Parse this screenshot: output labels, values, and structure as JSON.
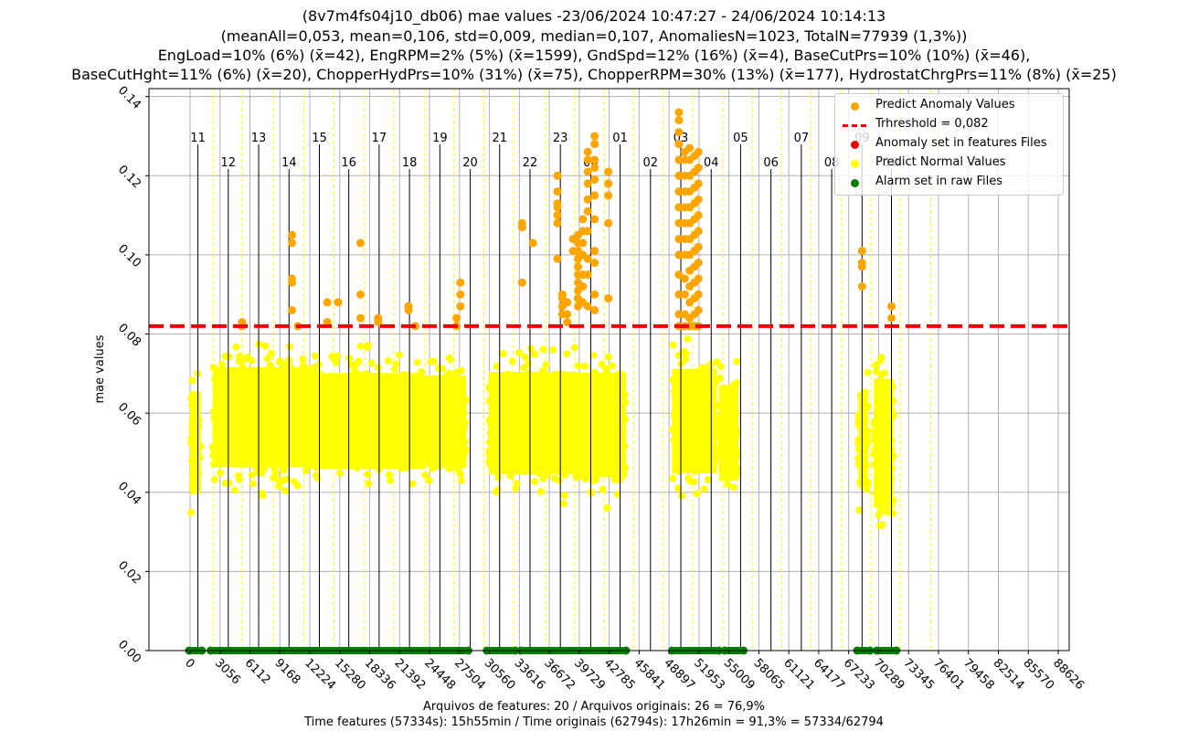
{
  "header": {
    "line1": "(8v7m4fs04j10_db06) mae values -23/06/2024 10:47:27 - 24/06/2024 10:14:13",
    "line2": "(meanAll=0,053, mean=0,106, std=0,009, median=0,107, AnomaliesN=1023, TotalN=77939 (1,3%))",
    "line3": "EngLoad=10% (6%) (x̄=42), EngRPM=2% (5%) (x̄=1599), GndSpd=12% (16%) (x̄=4), BaseCutPrs=10% (10%) (x̄=46),",
    "line4": "BaseCutHght=11% (6%) (x̄=20), ChopperHydPrs=10% (31%) (x̄=75), ChopperRPM=30% (13%) (x̄=177), HydrostatChrgPrs=11% (8%) (x̄=25)"
  },
  "footer": {
    "line1": "Arquivos de features: 20 / Arquivos originais: 26 = 76,9%",
    "line2": "Time features (57334s): 15h55min / Time originais (62794s): 17h26min = 91,3% = 57334/62794"
  },
  "legend": {
    "items": [
      {
        "label": "Predict Anomaly Values",
        "marker": "dot",
        "color": "#ffa500"
      },
      {
        "label": "Trhreshold = 0,082",
        "marker": "dash",
        "color": "#ee0000"
      },
      {
        "label": "Anomaly set in features Files",
        "marker": "dot",
        "color": "#ee0000"
      },
      {
        "label": "Predict Normal Values",
        "marker": "dot",
        "color": "#ffff00"
      },
      {
        "label": "Alarm set in raw Files",
        "marker": "dot",
        "color": "#007f00"
      }
    ]
  },
  "colors": {
    "anomaly": "#ffa500",
    "normal": "#ffff00",
    "threshold": "#ee0000",
    "alarm": "#007f00",
    "grid": "#b0b0b0",
    "hour_line": "#000000",
    "file_line": "#ffff00"
  },
  "chart_data": {
    "type": "scatter",
    "ylabel": "mae values",
    "xlabel": "",
    "xlim": [
      -3000,
      91500
    ],
    "ylim": [
      0,
      0.142
    ],
    "grid": true,
    "legend_position": "top-right",
    "y_ticks": [
      0.0,
      0.02,
      0.04,
      0.06,
      0.08,
      0.1,
      0.12,
      0.14
    ],
    "y_tick_labels": [
      "0.00",
      "0.02",
      "0.04",
      "0.06",
      "0.08",
      "0.10",
      "0.12",
      "0.14"
    ],
    "x_ticks": [
      0,
      3056,
      6112,
      9168,
      12224,
      15280,
      18336,
      21392,
      24448,
      27504,
      30560,
      33616,
      36672,
      39729,
      42785,
      45841,
      48897,
      51953,
      55009,
      58065,
      61121,
      64177,
      67233,
      70289,
      73345,
      76401,
      79458,
      82514,
      85570,
      88626
    ],
    "x_tick_labels": [
      "0",
      "3056",
      "6112",
      "9168",
      "12224",
      "15280",
      "18336",
      "21392",
      "24448",
      "27504",
      "30560",
      "33616",
      "36672",
      "39729",
      "42785",
      "45841",
      "48897",
      "51953",
      "55009",
      "58065",
      "61121",
      "64177",
      "67233",
      "70289",
      "73345",
      "76401",
      "79458",
      "82514",
      "85570",
      "88626"
    ],
    "threshold": 0.082,
    "hour_markers": [
      {
        "label": "11",
        "x": 800
      },
      {
        "label": "12",
        "x": 3900
      },
      {
        "label": "13",
        "x": 7000
      },
      {
        "label": "14",
        "x": 10100
      },
      {
        "label": "15",
        "x": 13200
      },
      {
        "label": "16",
        "x": 16200
      },
      {
        "label": "17",
        "x": 19300
      },
      {
        "label": "18",
        "x": 22400
      },
      {
        "label": "19",
        "x": 25500
      },
      {
        "label": "20",
        "x": 28600
      },
      {
        "label": "21",
        "x": 31600
      },
      {
        "label": "22",
        "x": 34700
      },
      {
        "label": "23",
        "x": 37800
      },
      {
        "label": "00",
        "x": 40900
      },
      {
        "label": "01",
        "x": 43900
      },
      {
        "label": "02",
        "x": 47000
      },
      {
        "label": "03",
        "x": 50100
      },
      {
        "label": "04",
        "x": 53200
      },
      {
        "label": "05",
        "x": 56200
      },
      {
        "label": "06",
        "x": 59300
      },
      {
        "label": "07",
        "x": 62400
      },
      {
        "label": "08",
        "x": 65500
      },
      {
        "label": "09",
        "x": 68600
      },
      {
        "label": "10",
        "x": 71600
      }
    ],
    "file_boundaries": [
      2400,
      5300,
      8500,
      11600,
      14700,
      17800,
      20800,
      24000,
      26900,
      30000,
      33000,
      36300,
      39300,
      42300,
      45300,
      48300,
      51300,
      54400,
      57400,
      60400,
      63400,
      66500,
      69500,
      72500,
      75600
    ],
    "series": [
      {
        "name": "Predict Normal Values",
        "kind": "normal_bands",
        "segments": [
          {
            "x": [
              0,
              1100
            ],
            "low": 0.029,
            "high": 0.076
          },
          {
            "x": [
              2300,
              11800
            ],
            "low": 0.036,
            "high": 0.082
          },
          {
            "x": [
              11800,
              23900
            ],
            "low": 0.036,
            "high": 0.08
          },
          {
            "x": [
              23900,
              28200
            ],
            "low": 0.037,
            "high": 0.079
          },
          {
            "x": [
              30500,
              39500
            ],
            "low": 0.034,
            "high": 0.081
          },
          {
            "x": [
              39500,
              44500
            ],
            "low": 0.033,
            "high": 0.081
          },
          {
            "x": [
              49200,
              53800
            ],
            "low": 0.034,
            "high": 0.082
          },
          {
            "x": [
              54000,
              56000
            ],
            "low": 0.033,
            "high": 0.077
          },
          {
            "x": [
              68200,
              69200
            ],
            "low": 0.031,
            "high": 0.075
          },
          {
            "x": [
              69800,
              71800
            ],
            "low": 0.023,
            "high": 0.082
          }
        ]
      },
      {
        "name": "Predict Anomaly Values",
        "kind": "anomaly_columns",
        "columns": [
          {
            "x": 5300,
            "values": [
              0.082,
              0.083
            ]
          },
          {
            "x": 10400,
            "values": [
              0.086,
              0.093,
              0.094,
              0.103,
              0.105
            ]
          },
          {
            "x": 11000,
            "values": [
              0.082
            ]
          },
          {
            "x": 14000,
            "values": [
              0.083,
              0.088
            ]
          },
          {
            "x": 15100,
            "values": [
              0.088
            ]
          },
          {
            "x": 17400,
            "values": [
              0.084,
              0.09,
              0.103
            ]
          },
          {
            "x": 19200,
            "values": [
              0.083,
              0.084
            ]
          },
          {
            "x": 22300,
            "values": [
              0.086,
              0.087
            ]
          },
          {
            "x": 23000,
            "values": [
              0.082
            ]
          },
          {
            "x": 27200,
            "values": [
              0.082,
              0.084
            ]
          },
          {
            "x": 27600,
            "values": [
              0.087,
              0.09,
              0.093
            ]
          },
          {
            "x": 33900,
            "values": [
              0.093,
              0.107,
              0.108
            ]
          },
          {
            "x": 35000,
            "values": [
              0.103
            ]
          },
          {
            "x": 37500,
            "values": [
              0.099,
              0.108,
              0.11,
              0.112,
              0.113,
              0.116,
              0.12
            ]
          },
          {
            "x": 38000,
            "values": [
              0.085,
              0.087,
              0.089,
              0.09
            ]
          },
          {
            "x": 38500,
            "values": [
              0.083,
              0.085,
              0.088
            ]
          },
          {
            "x": 39100,
            "values": [
              0.101,
              0.104
            ]
          },
          {
            "x": 39600,
            "values": [
              0.087,
              0.089,
              0.091,
              0.093,
              0.095,
              0.097,
              0.099,
              0.101,
              0.103,
              0.105
            ]
          },
          {
            "x": 40100,
            "values": [
              0.088,
              0.092,
              0.095,
              0.1,
              0.103,
              0.106,
              0.109
            ]
          },
          {
            "x": 40600,
            "values": [
              0.087,
              0.095,
              0.099,
              0.106,
              0.111,
              0.114,
              0.118,
              0.121,
              0.124,
              0.126
            ]
          },
          {
            "x": 41300,
            "values": [
              0.086,
              0.09,
              0.098,
              0.101,
              0.109,
              0.115,
              0.119,
              0.122,
              0.124,
              0.128,
              0.13
            ]
          },
          {
            "x": 42700,
            "values": [
              0.089,
              0.108,
              0.115,
              0.118,
              0.121
            ]
          },
          {
            "x": 49900,
            "values": [
              0.082,
              0.085,
              0.09,
              0.095,
              0.1,
              0.104,
              0.108,
              0.112,
              0.116,
              0.12,
              0.124,
              0.128,
              0.131,
              0.134,
              0.136
            ]
          },
          {
            "x": 50500,
            "values": [
              0.082,
              0.085,
              0.09,
              0.094,
              0.1,
              0.104,
              0.108,
              0.112,
              0.116,
              0.12,
              0.124,
              0.126
            ]
          },
          {
            "x": 51000,
            "values": [
              0.082,
              0.084,
              0.088,
              0.092,
              0.096,
              0.1,
              0.104,
              0.108,
              0.112,
              0.116,
              0.12,
              0.124,
              0.127
            ]
          },
          {
            "x": 51500,
            "values": [
              0.082,
              0.085,
              0.089,
              0.093,
              0.097,
              0.101,
              0.105,
              0.109,
              0.113,
              0.117,
              0.121,
              0.125
            ]
          },
          {
            "x": 51900,
            "values": [
              0.082,
              0.086,
              0.09,
              0.094,
              0.098,
              0.102,
              0.106,
              0.11,
              0.114,
              0.118,
              0.122,
              0.126
            ]
          },
          {
            "x": 68600,
            "values": [
              0.092,
              0.097,
              0.098,
              0.101
            ]
          },
          {
            "x": 71600,
            "values": [
              0.084,
              0.087
            ]
          }
        ]
      },
      {
        "name": "Alarm set in raw Files",
        "kind": "alarm_spans",
        "y": 0,
        "spans": [
          [
            -100,
            1200
          ],
          [
            2100,
            28400
          ],
          [
            30300,
            33200
          ],
          [
            33800,
            44500
          ],
          [
            49200,
            54000
          ],
          [
            54600,
            56500
          ],
          [
            68100,
            69400
          ],
          [
            70100,
            72100
          ]
        ]
      }
    ]
  }
}
